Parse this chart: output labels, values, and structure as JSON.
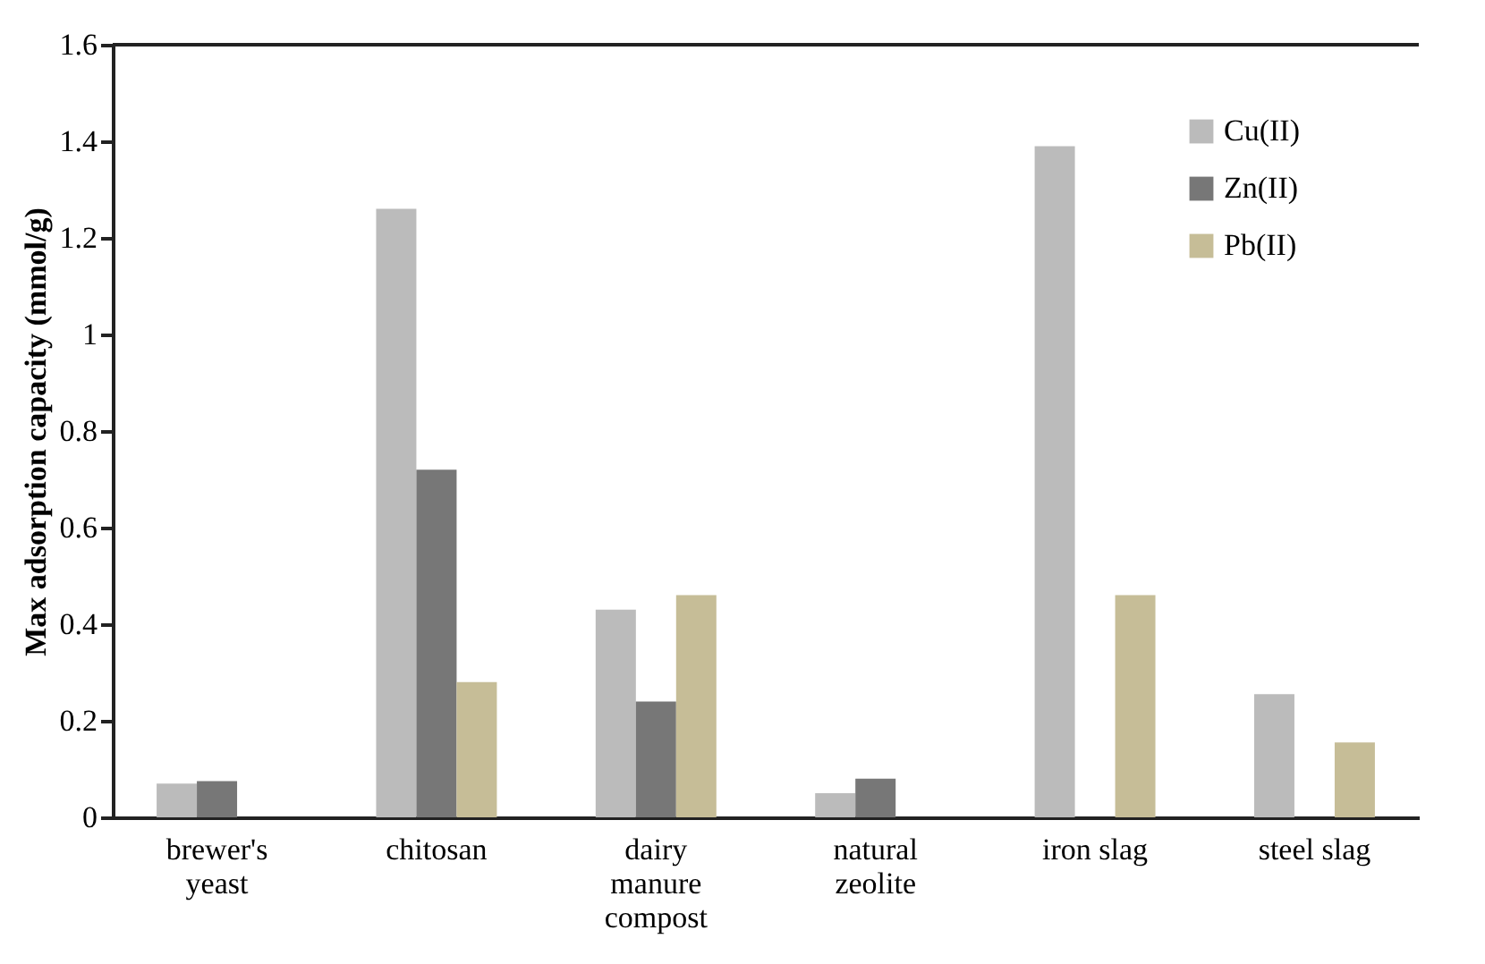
{
  "chart_data": {
    "type": "bar",
    "ylabel": "Max adsorption capacity (mmol/g)",
    "categories": [
      "brewer's\nyeast",
      "chitosan",
      "dairy\nmanure\ncompost",
      "natural\nzeolite",
      "iron slag",
      "steel slag"
    ],
    "series": [
      {
        "name": "Cu(II)",
        "color": "#bbbbbb",
        "values": [
          0.07,
          1.26,
          0.43,
          0.05,
          1.39,
          0.255
        ]
      },
      {
        "name": "Zn(II)",
        "color": "#777777",
        "values": [
          0.075,
          0.72,
          0.24,
          0.08,
          null,
          null
        ]
      },
      {
        "name": "Pb(II)",
        "color": "#c6bd97",
        "values": [
          null,
          0.28,
          0.46,
          null,
          0.46,
          0.155
        ]
      }
    ],
    "ylim": [
      0,
      1.6
    ],
    "yticks": [
      0,
      0.2,
      0.4,
      0.6,
      0.8,
      1,
      1.2,
      1.4,
      1.6
    ],
    "grid": false,
    "legend": "top right"
  }
}
